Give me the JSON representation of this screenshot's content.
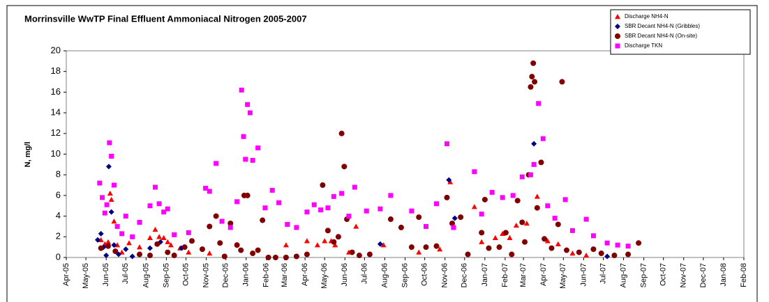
{
  "chart_data": {
    "type": "scatter",
    "title": "Morrinsville WwTP Final Effluent Ammoniacal Nitrogen 2005-2007",
    "y_label": "N, mg/l",
    "legend": "top-right",
    "xlim": [
      38443,
      39479
    ],
    "ylim": [
      0,
      20
    ],
    "yticks": [
      0,
      2,
      4,
      6,
      8,
      10,
      12,
      14,
      16,
      18,
      20
    ],
    "xticks": [
      {
        "value": 38443,
        "label": "Apr-05"
      },
      {
        "value": 38473,
        "label": "May-05"
      },
      {
        "value": 38504,
        "label": "Jun-05"
      },
      {
        "value": 38534,
        "label": "Jul-05"
      },
      {
        "value": 38565,
        "label": "Aug-05"
      },
      {
        "value": 38596,
        "label": "Sep-05"
      },
      {
        "value": 38626,
        "label": "Oct-05"
      },
      {
        "value": 38657,
        "label": "Nov-05"
      },
      {
        "value": 38687,
        "label": "Dec-05"
      },
      {
        "value": 38718,
        "label": "Jan-06"
      },
      {
        "value": 38749,
        "label": "Feb-06"
      },
      {
        "value": 38777,
        "label": "Mar-06"
      },
      {
        "value": 38808,
        "label": "Apr-06"
      },
      {
        "value": 38838,
        "label": "May-06"
      },
      {
        "value": 38869,
        "label": "Jun-06"
      },
      {
        "value": 38899,
        "label": "Jul-06"
      },
      {
        "value": 38930,
        "label": "Aug-06"
      },
      {
        "value": 38961,
        "label": "Sep-06"
      },
      {
        "value": 38991,
        "label": "Oct-06"
      },
      {
        "value": 39022,
        "label": "Nov-06"
      },
      {
        "value": 39052,
        "label": "Dec-06"
      },
      {
        "value": 39083,
        "label": "Jan-07"
      },
      {
        "value": 39114,
        "label": "Feb-07"
      },
      {
        "value": 39142,
        "label": "Mar-07"
      },
      {
        "value": 39173,
        "label": "Apr-07"
      },
      {
        "value": 39203,
        "label": "May-07"
      },
      {
        "value": 39234,
        "label": "Jun-07"
      },
      {
        "value": 39264,
        "label": "Jul-07"
      },
      {
        "value": 39295,
        "label": "Aug-07"
      },
      {
        "value": 39326,
        "label": "Sep-07"
      },
      {
        "value": 39356,
        "label": "Oct-07"
      },
      {
        "value": 39387,
        "label": "Nov-07"
      },
      {
        "value": 39417,
        "label": "Dec-07"
      },
      {
        "value": 39448,
        "label": "Jan-08"
      },
      {
        "value": 39479,
        "label": "Feb-08"
      }
    ],
    "series": [
      {
        "name": "Discharge NH4-N",
        "color": "#ff0000",
        "marker": "triangle",
        "x": [
          38496,
          38502,
          38507,
          38510,
          38512,
          38516,
          38521,
          38528,
          38539,
          38555,
          38571,
          38579,
          38585,
          38592,
          38598,
          38603,
          38617,
          38630,
          38662,
          38779,
          38811,
          38827,
          38838,
          38848,
          38854,
          38875,
          38886,
          38928,
          38982,
          39014,
          39030,
          39067,
          39078,
          39099,
          39110,
          39121,
          39131,
          39147,
          39158,
          39163,
          39179,
          39195,
          39217,
          39238
        ],
        "values": [
          1.7,
          1.3,
          1.5,
          6.2,
          5.6,
          3.5,
          1.2,
          0.5,
          1.4,
          1.0,
          1.9,
          2.7,
          2.0,
          1.9,
          1.5,
          1.2,
          0.9,
          0.5,
          0.4,
          1.2,
          1.6,
          1.2,
          1.6,
          1.6,
          1.2,
          0.5,
          3.0,
          1.2,
          0.5,
          0.8,
          7.3,
          4.9,
          1.5,
          1.9,
          2.3,
          1.9,
          3.1,
          3.3,
          9.0,
          5.9,
          1.6,
          1.3,
          0.4,
          0.2
        ]
      },
      {
        "name": "SBR Decant NH4-N (Gribbles)",
        "color": "#000080",
        "marker": "diamond",
        "x": [
          38491,
          38496,
          38500,
          38504,
          38508,
          38512,
          38516,
          38523,
          38534,
          38544,
          38571,
          38587,
          38619,
          38923,
          38955,
          39028,
          39037,
          39158,
          39270
        ],
        "values": [
          1.7,
          2.3,
          1.0,
          0.2,
          8.8,
          4.4,
          1.2,
          0.3,
          0.8,
          0.1,
          0.9,
          1.5,
          0.9,
          1.3,
          2.9,
          7.5,
          3.8,
          11.0,
          0.1
        ]
      },
      {
        "name": "SBR Decant NH4-N (On-site)",
        "color": "#800000",
        "marker": "circle",
        "x": [
          38496,
          38507,
          38518,
          38555,
          38571,
          38582,
          38598,
          38608,
          38624,
          38635,
          38651,
          38662,
          38672,
          38678,
          38685,
          38694,
          38704,
          38710,
          38715,
          38720,
          38728,
          38736,
          38743,
          38752,
          38763,
          38779,
          38795,
          38811,
          38835,
          38843,
          38852,
          38859,
          38864,
          38868,
          38872,
          38880,
          38891,
          38907,
          38939,
          38955,
          38971,
          38982,
          38993,
          39009,
          39025,
          39033,
          39046,
          39057,
          39078,
          39083,
          39089,
          39105,
          39115,
          39124,
          39133,
          39140,
          39144,
          39150,
          39153,
          39155,
          39157,
          39159,
          39163,
          39169,
          39174,
          39185,
          39195,
          39201,
          39208,
          39227,
          39249,
          39261,
          39281,
          39302,
          39318
        ],
        "values": [
          0.9,
          1.1,
          0.6,
          0.3,
          0.2,
          1.3,
          0.5,
          0.2,
          1.0,
          1.6,
          0.8,
          3.0,
          4.0,
          1.4,
          0.1,
          3.3,
          1.2,
          0.7,
          6.0,
          6.0,
          0.4,
          0.7,
          3.6,
          0.0,
          0.0,
          0.0,
          0.1,
          0.3,
          7.0,
          2.6,
          1.5,
          2.0,
          12.0,
          8.8,
          3.7,
          0.5,
          0.2,
          0.3,
          3.7,
          2.9,
          1.0,
          3.9,
          1.0,
          1.1,
          5.8,
          3.3,
          3.9,
          0.3,
          2.4,
          5.6,
          0.9,
          1.0,
          2.4,
          0.3,
          5.5,
          3.4,
          1.5,
          8.0,
          16.5,
          17.5,
          18.8,
          17.0,
          4.8,
          9.2,
          1.8,
          0.9,
          3.2,
          17.0,
          0.7,
          0.5,
          0.8,
          0.4,
          0.2,
          0.3,
          1.4
        ]
      },
      {
        "name": "Discharge TKN",
        "color": "#ff00ff",
        "marker": "square",
        "x": [
          38494,
          38498,
          38502,
          38505,
          38509,
          38512,
          38516,
          38521,
          38528,
          38534,
          38544,
          38555,
          38571,
          38579,
          38585,
          38592,
          38598,
          38608,
          38630,
          38656,
          38662,
          38672,
          38681,
          38694,
          38704,
          38711,
          38714,
          38717,
          38720,
          38724,
          38728,
          38736,
          38747,
          38758,
          38768,
          38781,
          38795,
          38811,
          38822,
          38832,
          38843,
          38852,
          38864,
          38875,
          38884,
          38902,
          38923,
          38939,
          38971,
          38993,
          39009,
          39025,
          39035,
          39067,
          39078,
          39094,
          39110,
          39126,
          39140,
          39153,
          39158,
          39165,
          39172,
          39179,
          39190,
          39206,
          39217,
          39238,
          39249,
          39270,
          39286,
          39302
        ],
        "values": [
          7.2,
          5.8,
          4.3,
          5.1,
          11.1,
          9.8,
          7.0,
          3.0,
          2.3,
          4.0,
          2.0,
          3.4,
          5.0,
          6.8,
          5.2,
          4.4,
          4.7,
          2.2,
          2.4,
          6.7,
          6.4,
          9.1,
          3.5,
          2.9,
          5.4,
          16.2,
          11.7,
          9.5,
          14.8,
          14.0,
          9.4,
          10.6,
          4.8,
          6.5,
          5.3,
          3.2,
          2.9,
          4.4,
          5.1,
          4.6,
          4.8,
          5.9,
          6.2,
          4.0,
          6.8,
          4.5,
          4.7,
          6.0,
          4.5,
          3.0,
          5.2,
          11.0,
          2.9,
          8.3,
          4.2,
          6.3,
          5.8,
          6.0,
          7.8,
          8.0,
          9.0,
          14.9,
          11.5,
          5.0,
          3.8,
          5.6,
          2.6,
          3.7,
          2.1,
          1.4,
          1.2,
          1.1
        ]
      }
    ]
  }
}
